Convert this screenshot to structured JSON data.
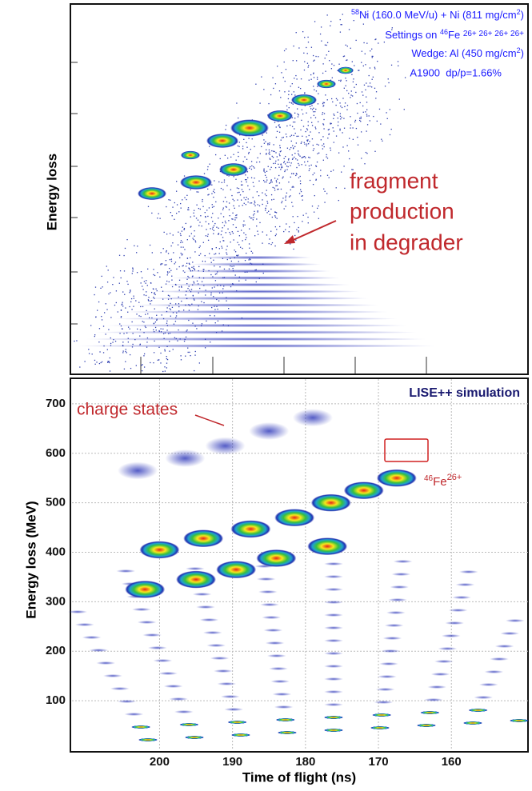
{
  "chart_data": [
    {
      "type": "image",
      "ylabel": "Energy loss",
      "annotations": {
        "reaction": [
          "58",
          "Ni (160.0 MeV/u) + Ni (811 mg/cm",
          "2",
          ")"
        ],
        "settings": [
          "Settings on ",
          "46",
          "Fe ",
          "26+ 26+ 26+ 26+"
        ],
        "wedge": [
          "Wedge: Al (450 mg/cm",
          "2",
          ")"
        ],
        "optics": "A1900  dp/p=1.66%",
        "note": [
          "fragment",
          "production",
          "in degrader"
        ]
      }
    },
    {
      "type": "scatter",
      "title": "LISE++ simulation",
      "xlabel": "Time of flight (ns)",
      "ylabel": "Energy loss (MeV)",
      "x": [
        202,
        195,
        189.5,
        184,
        177,
        200,
        194,
        187.5,
        181.5,
        176.5,
        172,
        167.5,
        203,
        196.5,
        191,
        185,
        179
      ],
      "y": [
        325,
        345,
        365,
        388,
        412,
        405,
        428,
        447,
        470,
        500,
        525,
        550,
        565,
        590,
        615,
        645,
        672
      ],
      "xlim": [
        212,
        149.5
      ],
      "ylim": [
        0,
        750
      ],
      "xticks": [
        200,
        190,
        180,
        170,
        160
      ],
      "yticks": [
        100,
        200,
        300,
        400,
        500,
        600,
        700
      ],
      "grid": true,
      "annotations": {
        "charge": "charge states",
        "ion": [
          "46",
          "Fe",
          "26+"
        ]
      }
    }
  ]
}
